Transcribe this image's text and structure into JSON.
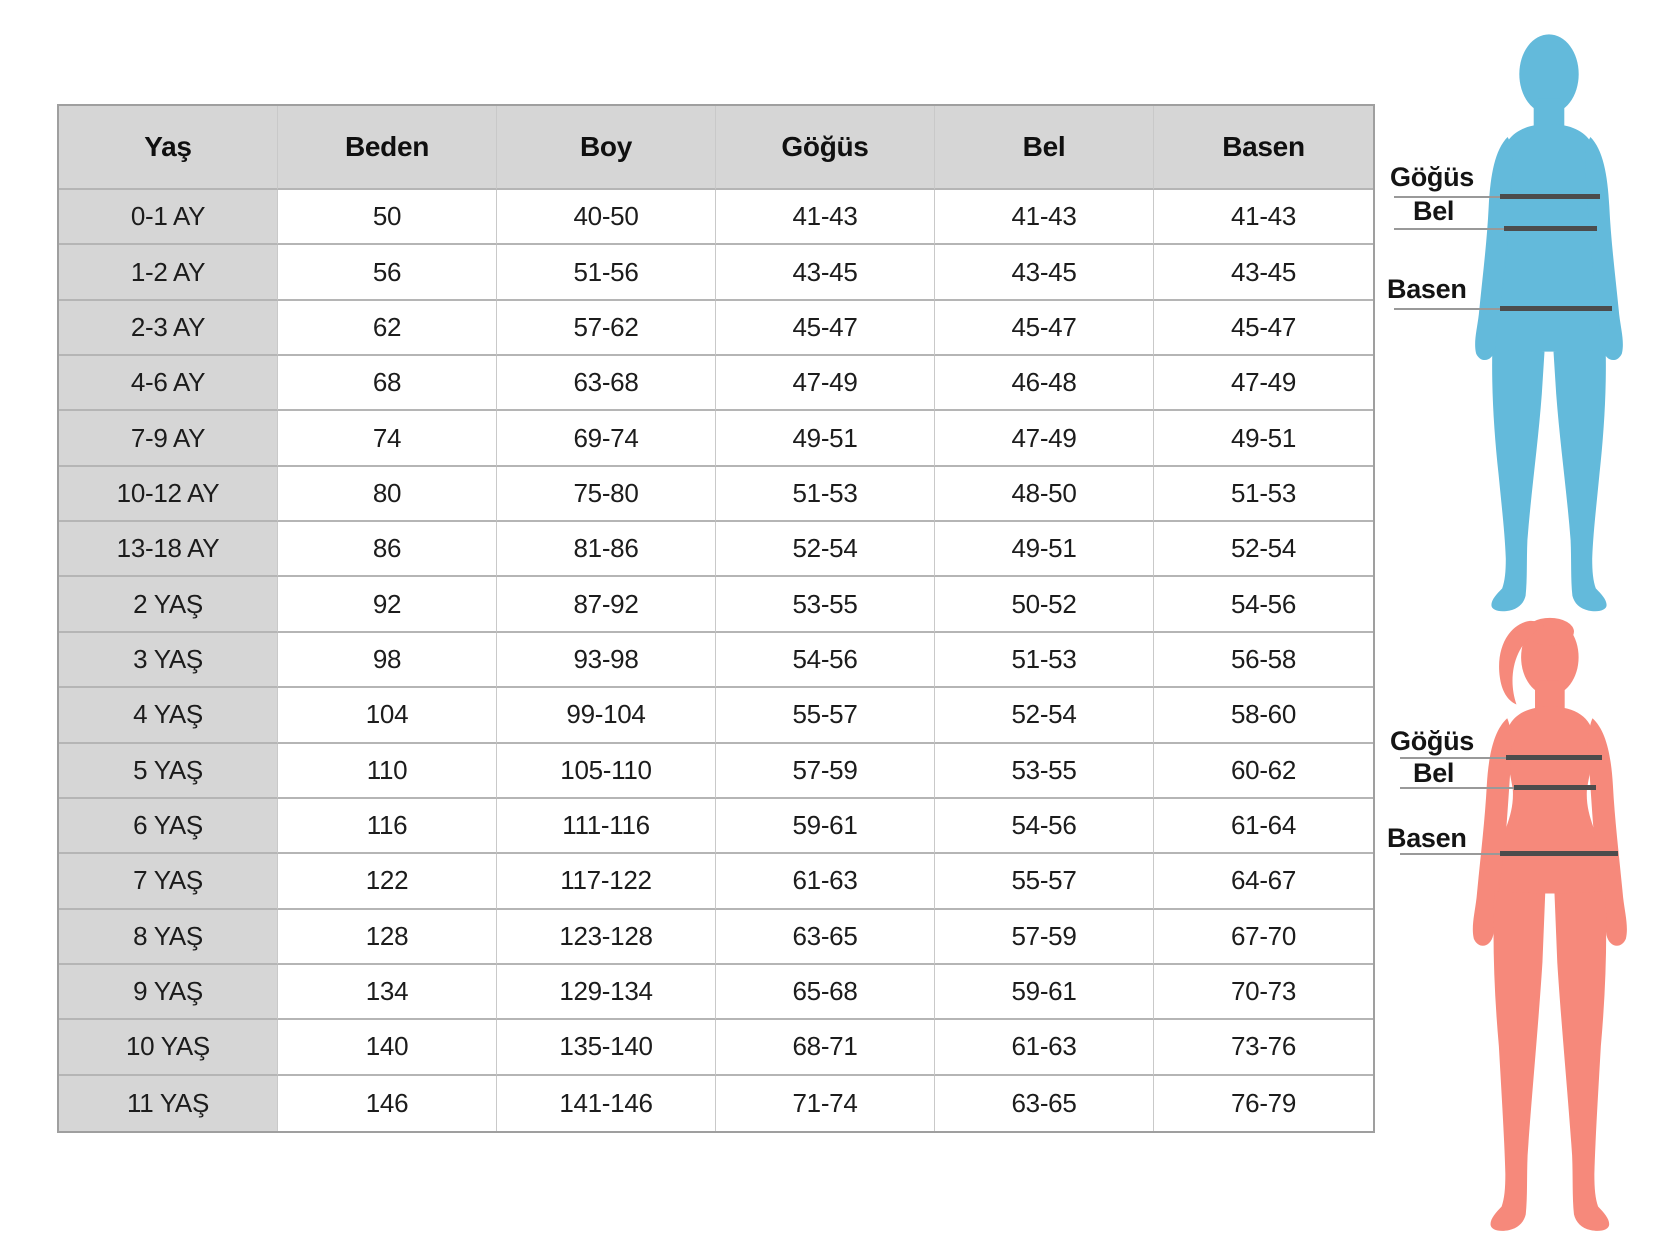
{
  "chart_data": {
    "type": "table",
    "columns": [
      "Yaş",
      "Beden",
      "Boy",
      "Göğüs",
      "Bel",
      "Basen"
    ],
    "rows": [
      [
        "0-1 AY",
        "50",
        "40-50",
        "41-43",
        "41-43",
        "41-43"
      ],
      [
        "1-2 AY",
        "56",
        "51-56",
        "43-45",
        "43-45",
        "43-45"
      ],
      [
        "2-3 AY",
        "62",
        "57-62",
        "45-47",
        "45-47",
        "45-47"
      ],
      [
        "4-6 AY",
        "68",
        "63-68",
        "47-49",
        "46-48",
        "47-49"
      ],
      [
        "7-9 AY",
        "74",
        "69-74",
        "49-51",
        "47-49",
        "49-51"
      ],
      [
        "10-12 AY",
        "80",
        "75-80",
        "51-53",
        "48-50",
        "51-53"
      ],
      [
        "13-18 AY",
        "86",
        "81-86",
        "52-54",
        "49-51",
        "52-54"
      ],
      [
        "2 YAŞ",
        "92",
        "87-92",
        "53-55",
        "50-52",
        "54-56"
      ],
      [
        "3 YAŞ",
        "98",
        "93-98",
        "54-56",
        "51-53",
        "56-58"
      ],
      [
        "4 YAŞ",
        "104",
        "99-104",
        "55-57",
        "52-54",
        "58-60"
      ],
      [
        "5 YAŞ",
        "110",
        "105-110",
        "57-59",
        "53-55",
        "60-62"
      ],
      [
        "6 YAŞ",
        "116",
        "111-116",
        "59-61",
        "54-56",
        "61-64"
      ],
      [
        "7 YAŞ",
        "122",
        "117-122",
        "61-63",
        "55-57",
        "64-67"
      ],
      [
        "8 YAŞ",
        "128",
        "123-128",
        "63-65",
        "57-59",
        "67-70"
      ],
      [
        "9 YAŞ",
        "134",
        "129-134",
        "65-68",
        "59-61",
        "70-73"
      ],
      [
        "10 YAŞ",
        "140",
        "135-140",
        "68-71",
        "61-63",
        "73-76"
      ],
      [
        "11 YAŞ",
        "146",
        "141-146",
        "71-74",
        "63-65",
        "76-79"
      ]
    ]
  },
  "figures": {
    "blue": {
      "icon": "boy-silhouette",
      "color": "#63BADB",
      "measurements": {
        "chest": "Göğüs",
        "waist": "Bel",
        "hips": "Basen"
      }
    },
    "pink": {
      "icon": "girl-silhouette",
      "color": "#F6897B",
      "measurements": {
        "chest": "Göğüs",
        "waist": "Bel",
        "hips": "Basen"
      }
    }
  },
  "colors": {
    "header_bg": "#d6d6d6",
    "row_header_bg": "#d6d6d6",
    "table_border": "#9f9f9f",
    "grid_line": "#b5b5b5",
    "text": "#1c1c1c",
    "measure_line_thick": "#4c4c4c",
    "measure_line_thin": "#999999"
  }
}
